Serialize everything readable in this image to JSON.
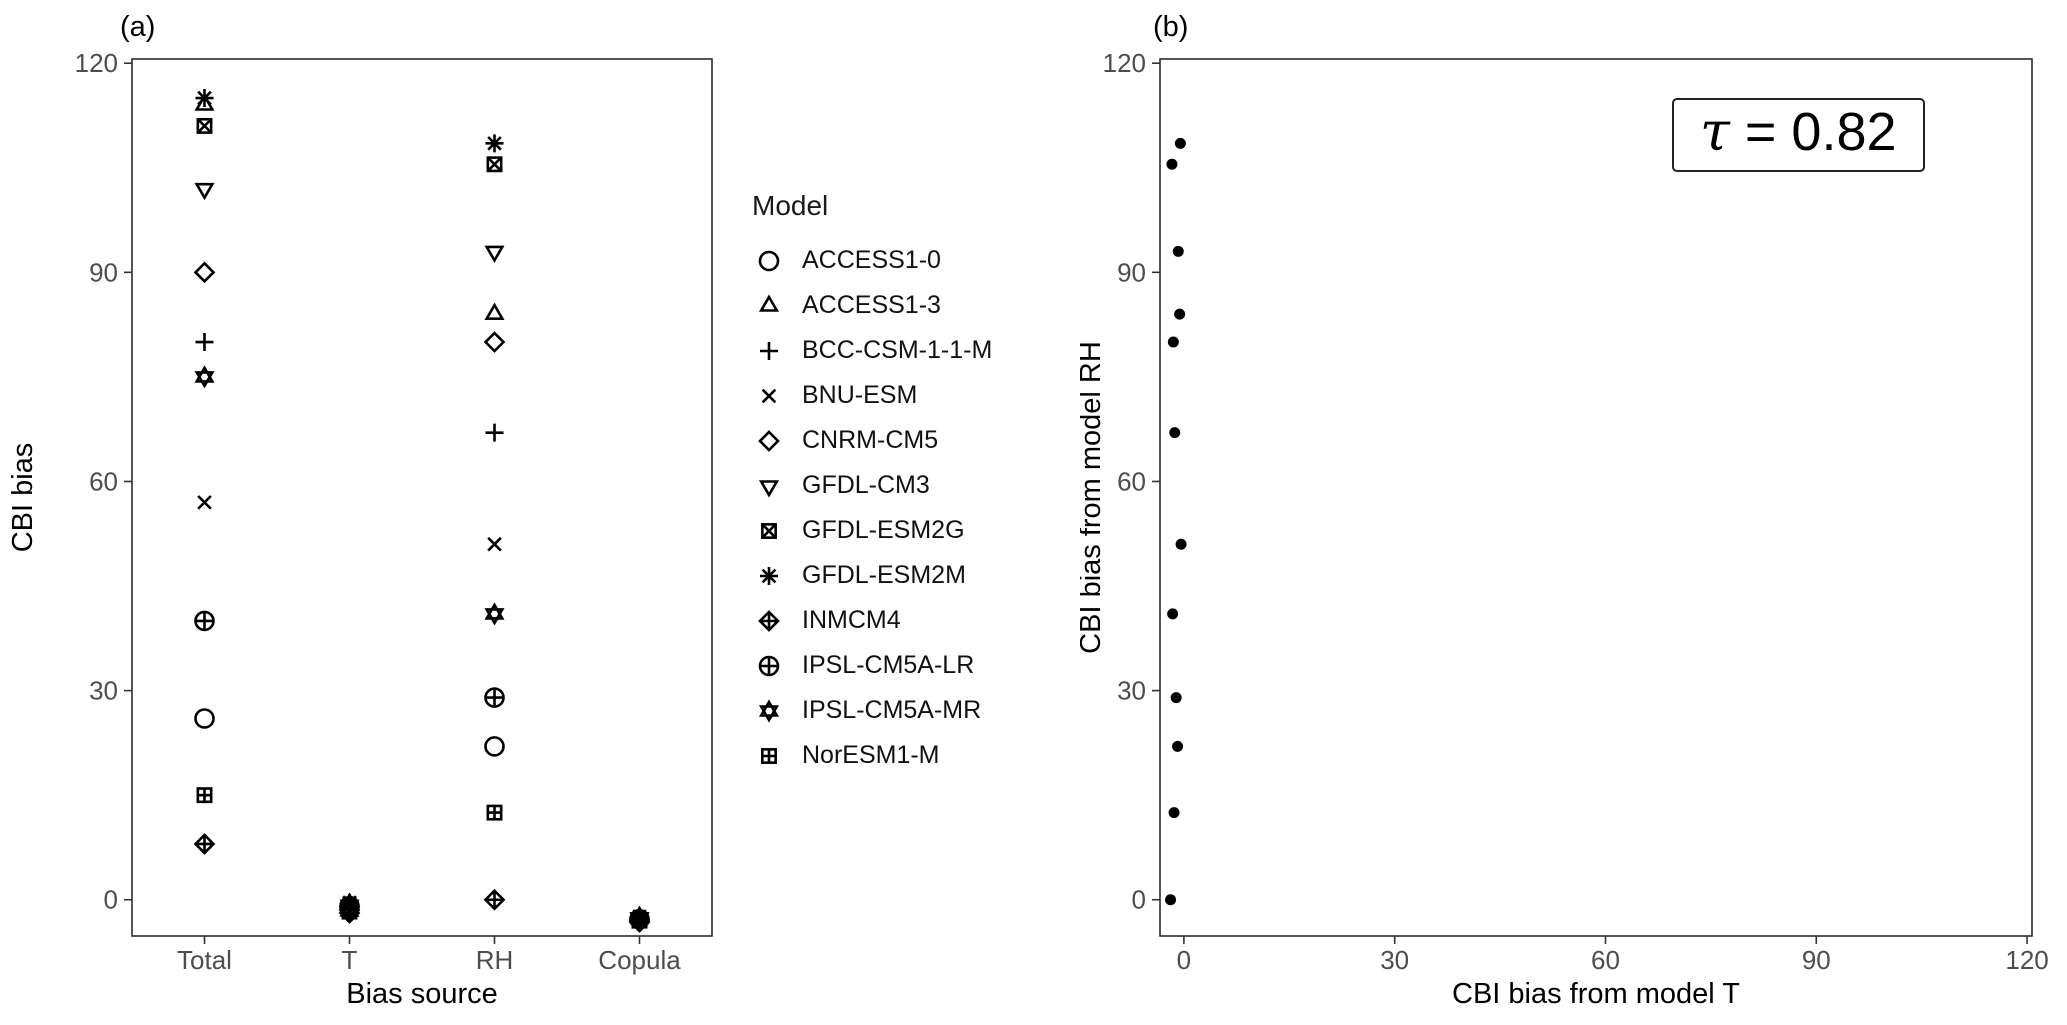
{
  "figure": {
    "background": "#ffffff",
    "point_color": "#000000",
    "border_color": "#2b2b2b",
    "tick_label_color": "#4d4d4d"
  },
  "chart_data": [
    {
      "type": "scatter",
      "panel_label": "(a)",
      "xlabel": "Bias source",
      "ylabel": "CBI bias",
      "categories": [
        "Total",
        "T",
        "RH",
        "Copula"
      ],
      "yticks": [
        0,
        30,
        60,
        90,
        120
      ],
      "ylim": [
        -5.2,
        120.6
      ],
      "grid": false,
      "legend_title": "Model",
      "legend_position": "right",
      "series": [
        {
          "name": "ACCESS1-0",
          "marker": "circle",
          "values": {
            "Total": 26,
            "T": -0.9,
            "RH": 22,
            "Copula": -2.8
          }
        },
        {
          "name": "ACCESS1-3",
          "marker": "triangle-up",
          "values": {
            "Total": 114,
            "T": -0.6,
            "RH": 84,
            "Copula": -2.5
          }
        },
        {
          "name": "BCC-CSM-1-1-M",
          "marker": "plus",
          "values": {
            "Total": 80,
            "T": -1.3,
            "RH": 67,
            "Copula": -3.0
          }
        },
        {
          "name": "BNU-ESM",
          "marker": "x",
          "values": {
            "Total": 57,
            "T": -0.4,
            "RH": 51,
            "Copula": -2.6
          }
        },
        {
          "name": "CNRM-CM5",
          "marker": "diamond",
          "values": {
            "Total": 90,
            "T": -1.5,
            "RH": 80,
            "Copula": -3.1
          }
        },
        {
          "name": "GFDL-CM3",
          "marker": "triangle-down",
          "values": {
            "Total": 102,
            "T": -0.8,
            "RH": 93,
            "Copula": -2.7
          }
        },
        {
          "name": "GFDL-ESM2G",
          "marker": "square-x",
          "values": {
            "Total": 111,
            "T": -1.7,
            "RH": 105.5,
            "Copula": -2.9
          }
        },
        {
          "name": "GFDL-ESM2M",
          "marker": "asterisk",
          "values": {
            "Total": 115,
            "T": -0.5,
            "RH": 108.5,
            "Copula": -2.4
          }
        },
        {
          "name": "INMCM4",
          "marker": "diamond-plus",
          "values": {
            "Total": 8,
            "T": -1.9,
            "RH": 0,
            "Copula": -3.2
          }
        },
        {
          "name": "IPSL-CM5A-LR",
          "marker": "circle-plus",
          "values": {
            "Total": 40,
            "T": -1.1,
            "RH": 29,
            "Copula": -2.8
          }
        },
        {
          "name": "IPSL-CM5A-MR",
          "marker": "hexagram",
          "values": {
            "Total": 75,
            "T": -1.6,
            "RH": 41,
            "Copula": -2.6
          }
        },
        {
          "name": "NorESM1-M",
          "marker": "square-plus",
          "values": {
            "Total": 15,
            "T": -1.4,
            "RH": 12.5,
            "Copula": -3.0
          }
        }
      ]
    },
    {
      "type": "scatter",
      "panel_label": "(b)",
      "xlabel": "CBI bias from model T",
      "ylabel": "CBI bias from model RH",
      "xticks": [
        0,
        30,
        60,
        90,
        120
      ],
      "yticks": [
        0,
        30,
        60,
        90,
        120
      ],
      "xlim": [
        -3.4,
        120.7
      ],
      "ylim": [
        -5.2,
        120.6
      ],
      "grid": false,
      "marker": "dot",
      "points_derived_from": "panel (a): x = T bias, y = RH bias per model",
      "annotation": {
        "full": "τ = 0.82",
        "tau": "τ",
        "rest": " = 0.82"
      }
    }
  ]
}
